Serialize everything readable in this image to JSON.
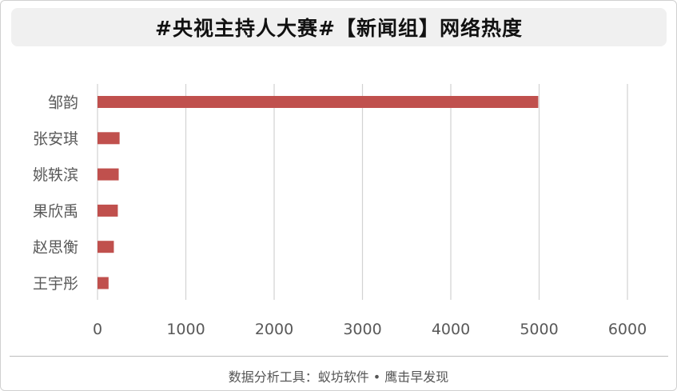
{
  "title": "#央视主持人大赛#【新闻组】网络热度",
  "footer": "数据分析工具：蚁坊软件 • 鹰击早发现",
  "colors": {
    "bar": "#c0504d",
    "grid": "#d3d3d3",
    "axis_text": "#595959"
  },
  "chart_data": {
    "type": "bar",
    "orientation": "horizontal",
    "title": "#央视主持人大赛#【新闻组】网络热度",
    "categories": [
      "邹韵",
      "张安琪",
      "姚轶滨",
      "果欣禹",
      "赵思衡",
      "王宇彤"
    ],
    "values": [
      4990,
      250,
      240,
      230,
      185,
      125
    ],
    "xlim": [
      0,
      6000
    ],
    "xticks": [
      0,
      1000,
      2000,
      3000,
      4000,
      5000,
      6000
    ],
    "grid": "vertical",
    "legend": "none"
  }
}
